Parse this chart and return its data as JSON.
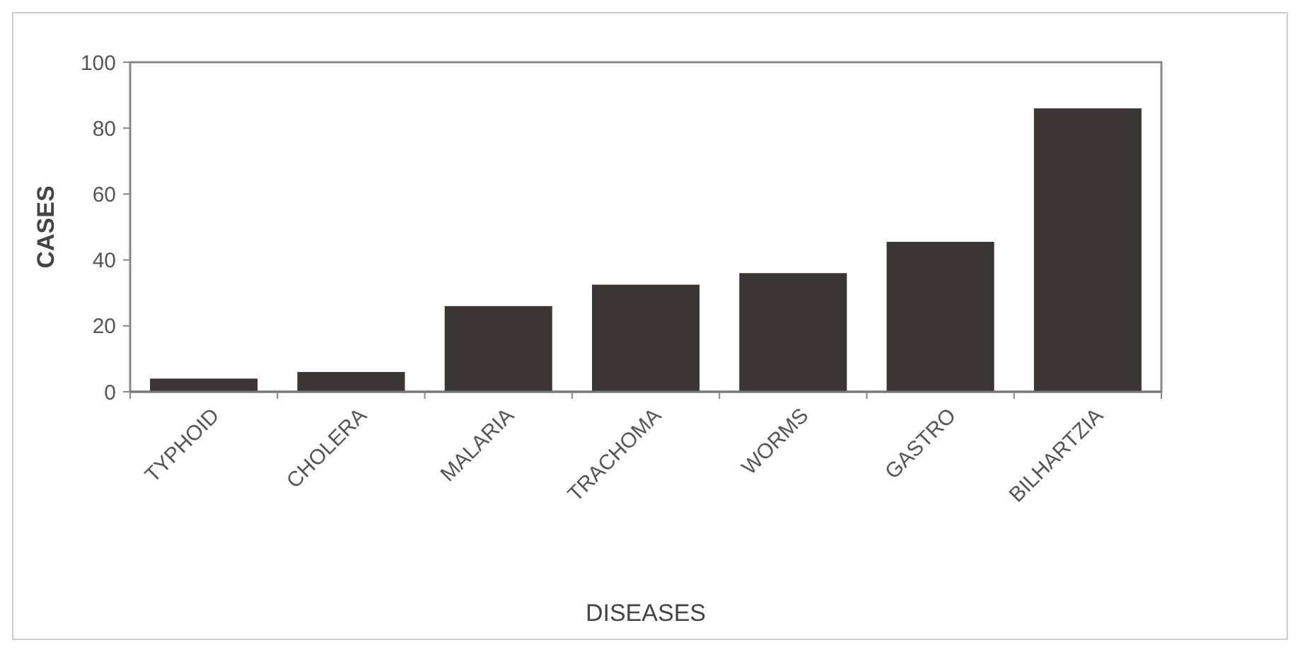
{
  "chart_data": {
    "type": "bar",
    "xlabel": "DISEASES",
    "ylabel": "CASES",
    "categories": [
      "TYPHOID",
      "CHOLERA",
      "MALARIA",
      "TRACHOMA",
      "WORMS",
      "GASTRO",
      "BILHARTZIA"
    ],
    "values": [
      4,
      6,
      26,
      32.5,
      36,
      45.5,
      86
    ],
    "color": "#3b3535",
    "ylim": [
      0,
      100
    ],
    "yticks": [
      0,
      20,
      40,
      60,
      80,
      100
    ],
    "grid": false
  }
}
